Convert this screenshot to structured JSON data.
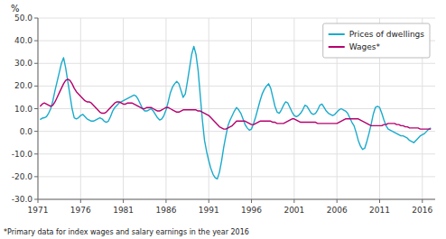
{
  "chart_data": {
    "type": "line",
    "ylabel": "%",
    "footnote": "*Primary data for index wages and salary earnings in the year 2016",
    "xlim": [
      1971,
      2017.5
    ],
    "ylim": [
      -30.0,
      50.0
    ],
    "xticks": [
      1971,
      1976,
      1981,
      1986,
      1991,
      1996,
      2001,
      2006,
      2011,
      2016
    ],
    "yticks": [
      {
        "value": -30.0,
        "label": "-30.0"
      },
      {
        "value": -20.0,
        "label": "-20.0"
      },
      {
        "value": -10.0,
        "label": "-10.0"
      },
      {
        "value": 0.0,
        "label": "0.0"
      },
      {
        "value": 10.0,
        "label": "10.0"
      },
      {
        "value": 20.0,
        "label": "20.0"
      },
      {
        "value": 30.0,
        "label": "30.0"
      },
      {
        "value": 40.0,
        "label": "40.0"
      },
      {
        "value": 50.0,
        "label": "50.0"
      }
    ],
    "grid": true,
    "legend": "upper right",
    "x": [
      1971.25,
      1971.5,
      1971.75,
      1972.0,
      1972.25,
      1972.5,
      1972.75,
      1973.0,
      1973.25,
      1973.5,
      1973.75,
      1974.0,
      1974.25,
      1974.5,
      1974.75,
      1975.0,
      1975.25,
      1975.5,
      1975.75,
      1976.0,
      1976.25,
      1976.5,
      1976.75,
      1977.0,
      1977.25,
      1977.5,
      1977.75,
      1978.0,
      1978.25,
      1978.5,
      1978.75,
      1979.0,
      1979.25,
      1979.5,
      1979.75,
      1980.0,
      1980.25,
      1980.5,
      1980.75,
      1981.0,
      1981.25,
      1981.5,
      1981.75,
      1982.0,
      1982.25,
      1982.5,
      1982.75,
      1983.0,
      1983.25,
      1983.5,
      1983.75,
      1984.0,
      1984.25,
      1984.5,
      1984.75,
      1985.0,
      1985.25,
      1985.5,
      1985.75,
      1986.0,
      1986.25,
      1986.5,
      1986.75,
      1987.0,
      1987.25,
      1987.5,
      1987.75,
      1988.0,
      1988.25,
      1988.5,
      1988.75,
      1989.0,
      1989.25,
      1989.5,
      1989.75,
      1990.0,
      1990.25,
      1990.5,
      1990.75,
      1991.0,
      1991.25,
      1991.5,
      1991.75,
      1992.0,
      1992.25,
      1992.5,
      1992.75,
      1993.0,
      1993.25,
      1993.5,
      1993.75,
      1994.0,
      1994.25,
      1994.5,
      1994.75,
      1995.0,
      1995.25,
      1995.5,
      1995.75,
      1996.0,
      1996.25,
      1996.5,
      1996.75,
      1997.0,
      1997.25,
      1997.5,
      1997.75,
      1998.0,
      1998.25,
      1998.5,
      1998.75,
      1999.0,
      1999.25,
      1999.5,
      1999.75,
      2000.0,
      2000.25,
      2000.5,
      2000.75,
      2001.0,
      2001.25,
      2001.5,
      2001.75,
      2002.0,
      2002.25,
      2002.5,
      2002.75,
      2003.0,
      2003.25,
      2003.5,
      2003.75,
      2004.0,
      2004.25,
      2004.5,
      2004.75,
      2005.0,
      2005.25,
      2005.5,
      2005.75,
      2006.0,
      2006.25,
      2006.5,
      2006.75,
      2007.0,
      2007.25,
      2007.5,
      2007.75,
      2008.0,
      2008.25,
      2008.5,
      2008.75,
      2009.0,
      2009.25,
      2009.5,
      2009.75,
      2010.0,
      2010.25,
      2010.5,
      2010.75,
      2011.0,
      2011.25,
      2011.5,
      2011.75,
      2012.0,
      2012.25,
      2012.5,
      2012.75,
      2013.0,
      2013.25,
      2013.5,
      2013.75,
      2014.0,
      2014.25,
      2014.5,
      2014.75,
      2015.0,
      2015.25,
      2015.5,
      2015.75,
      2016.0,
      2016.25,
      2016.5,
      2016.75,
      2017.0
    ],
    "series": [
      {
        "name": "Prices of dwellings",
        "color": "#1aabcc",
        "values": [
          5.2,
          5.8,
          6.0,
          6.5,
          8.0,
          10.0,
          13.5,
          18.0,
          22.0,
          26.0,
          30.0,
          32.5,
          28.0,
          22.0,
          16.0,
          10.0,
          6.0,
          5.5,
          6.0,
          7.0,
          7.5,
          6.5,
          5.5,
          5.0,
          4.5,
          4.5,
          5.0,
          5.5,
          6.0,
          5.5,
          4.5,
          4.0,
          4.5,
          6.5,
          9.0,
          10.5,
          11.5,
          12.5,
          13.0,
          13.5,
          14.0,
          14.5,
          15.0,
          15.5,
          16.0,
          15.5,
          14.0,
          12.0,
          10.0,
          9.0,
          9.0,
          9.5,
          10.0,
          9.0,
          7.5,
          6.0,
          5.0,
          5.5,
          7.0,
          9.5,
          13.0,
          17.0,
          19.5,
          21.0,
          22.0,
          21.0,
          18.0,
          15.0,
          16.5,
          22.0,
          28.0,
          34.0,
          37.5,
          34.0,
          27.0,
          16.0,
          5.0,
          -4.0,
          -9.0,
          -13.0,
          -16.5,
          -19.0,
          -20.5,
          -21.0,
          -18.0,
          -13.0,
          -7.0,
          -2.0,
          2.5,
          5.0,
          7.0,
          9.0,
          10.5,
          9.5,
          8.0,
          5.5,
          3.0,
          1.5,
          0.5,
          1.0,
          3.5,
          6.5,
          10.0,
          13.5,
          16.5,
          18.5,
          20.0,
          21.0,
          19.0,
          15.0,
          11.0,
          8.5,
          8.0,
          9.5,
          11.5,
          13.0,
          12.5,
          10.5,
          8.5,
          7.0,
          6.5,
          7.0,
          8.0,
          9.5,
          11.5,
          11.0,
          9.5,
          8.0,
          7.5,
          8.0,
          9.5,
          11.5,
          12.0,
          10.5,
          9.0,
          8.0,
          7.5,
          7.0,
          7.5,
          8.5,
          9.5,
          10.0,
          9.5,
          9.0,
          8.0,
          6.0,
          4.0,
          2.5,
          -0.5,
          -4.0,
          -6.5,
          -8.0,
          -7.5,
          -4.5,
          -1.0,
          3.0,
          7.5,
          10.5,
          11.0,
          10.5,
          8.0,
          5.0,
          2.5,
          1.0,
          0.5,
          0.0,
          -0.5,
          -1.0,
          -1.5,
          -2.0,
          -2.0,
          -2.5,
          -3.0,
          -4.0,
          -4.5,
          -5.0,
          -4.0,
          -3.0,
          -2.0,
          -1.5,
          -1.0,
          0.0,
          1.0,
          1.5
        ]
      },
      {
        "name": "Wages*",
        "color": "#b5006e",
        "values": [
          11.0,
          12.0,
          12.5,
          12.0,
          11.5,
          11.0,
          11.5,
          13.0,
          15.0,
          17.0,
          19.0,
          21.0,
          22.5,
          23.0,
          22.5,
          21.0,
          19.0,
          17.5,
          16.5,
          15.5,
          14.5,
          13.5,
          13.0,
          13.0,
          12.5,
          11.5,
          10.5,
          9.5,
          8.5,
          8.0,
          8.0,
          8.5,
          9.5,
          10.5,
          11.5,
          12.5,
          13.0,
          13.0,
          12.5,
          12.0,
          12.0,
          12.5,
          12.5,
          12.5,
          12.0,
          11.5,
          11.0,
          10.5,
          10.0,
          10.0,
          10.5,
          10.5,
          10.5,
          10.0,
          9.5,
          9.0,
          9.0,
          9.5,
          10.0,
          10.5,
          10.5,
          10.0,
          9.5,
          9.0,
          8.5,
          8.5,
          9.0,
          9.5,
          9.5,
          9.5,
          9.5,
          9.5,
          9.5,
          9.5,
          9.0,
          9.0,
          8.5,
          8.0,
          7.5,
          7.0,
          6.0,
          5.0,
          4.0,
          3.0,
          2.0,
          1.5,
          1.0,
          1.0,
          1.5,
          2.0,
          2.5,
          3.5,
          4.5,
          4.5,
          4.5,
          4.5,
          4.5,
          4.0,
          3.5,
          3.0,
          3.0,
          3.5,
          4.0,
          4.5,
          4.5,
          4.5,
          4.5,
          4.5,
          4.5,
          4.0,
          4.0,
          3.5,
          3.5,
          3.5,
          3.5,
          4.0,
          4.5,
          5.0,
          5.5,
          5.5,
          5.0,
          4.5,
          4.0,
          4.0,
          4.0,
          4.0,
          4.0,
          4.0,
          4.0,
          4.0,
          3.5,
          3.5,
          3.5,
          3.5,
          3.5,
          3.5,
          3.5,
          3.5,
          3.5,
          3.5,
          4.0,
          4.5,
          5.0,
          5.5,
          5.5,
          5.5,
          5.5,
          5.5,
          5.5,
          5.5,
          5.0,
          4.5,
          4.0,
          3.5,
          3.0,
          2.5,
          2.5,
          2.5,
          2.5,
          2.5,
          2.5,
          3.0,
          3.0,
          3.5,
          3.5,
          3.5,
          3.5,
          3.0,
          3.0,
          2.5,
          2.5,
          2.0,
          2.0,
          1.5,
          1.5,
          1.5,
          1.5,
          1.5,
          1.0,
          1.0,
          1.0,
          1.0,
          1.0,
          1.0
        ]
      }
    ]
  }
}
